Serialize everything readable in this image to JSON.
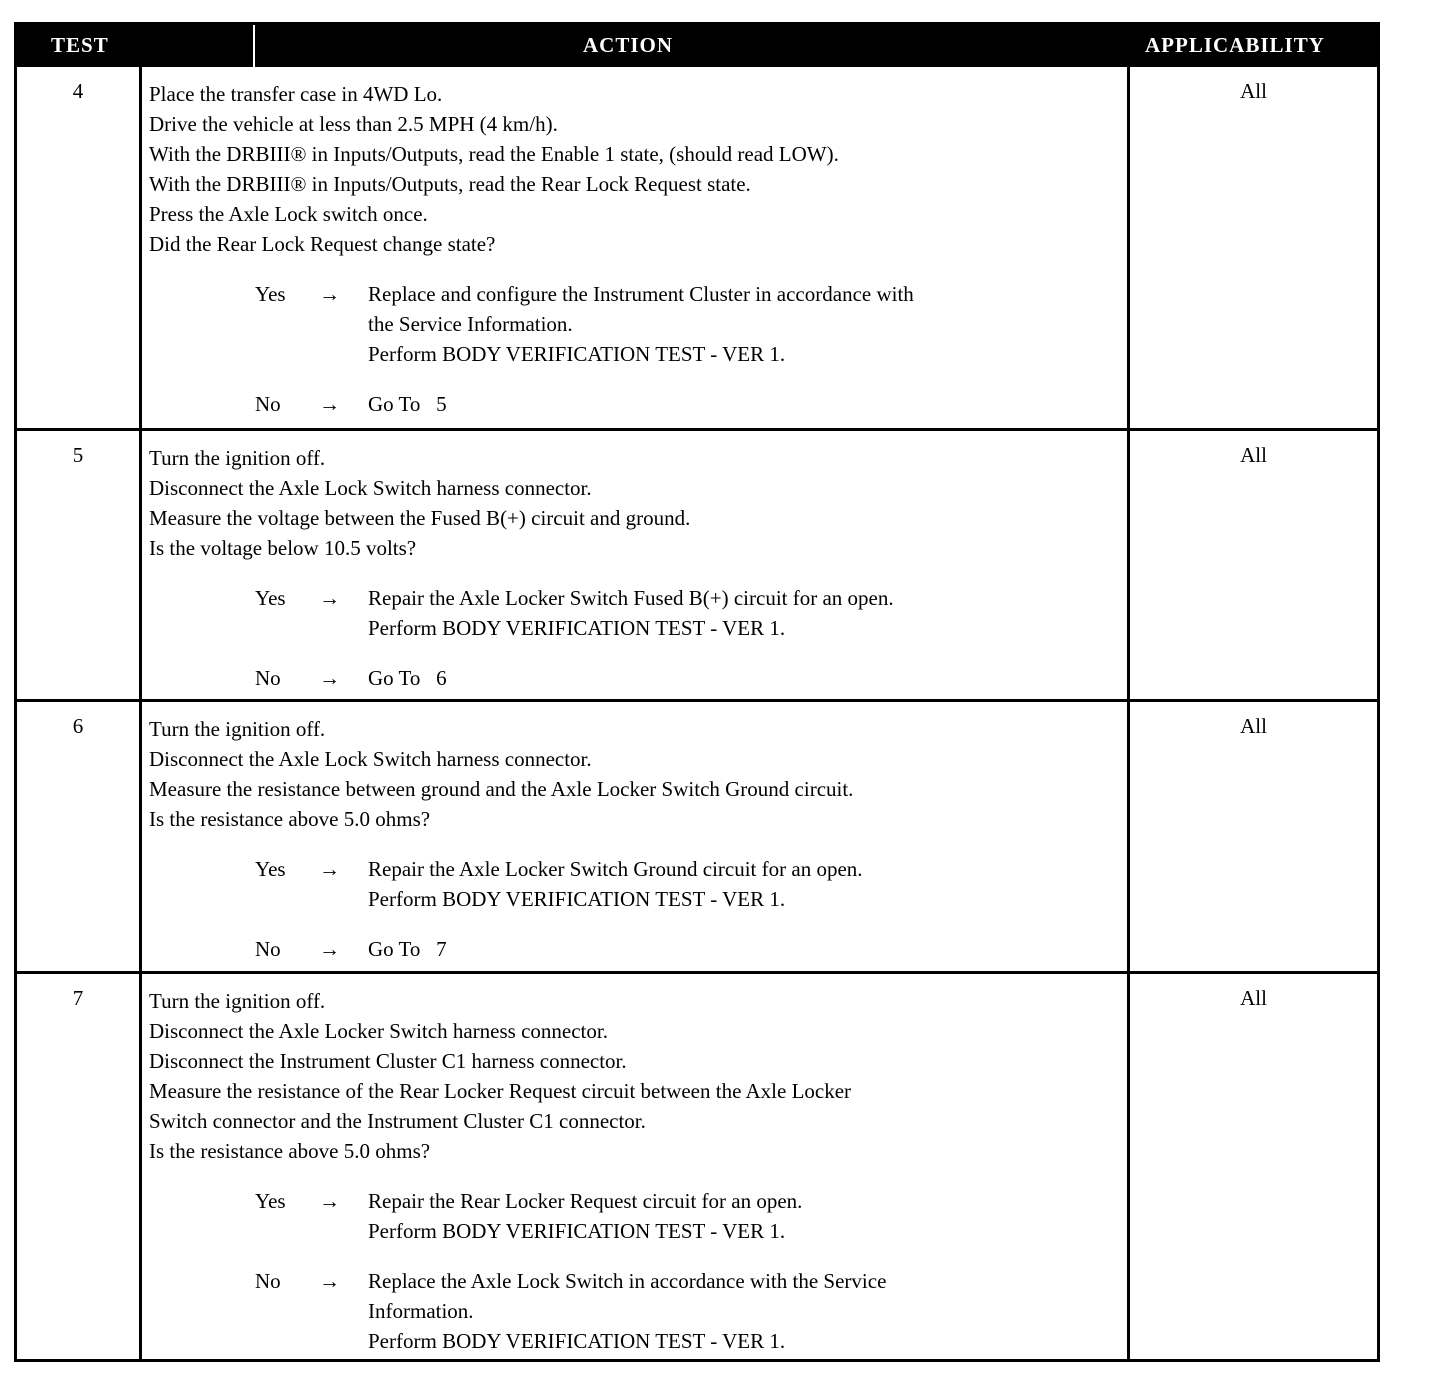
{
  "headers": {
    "test": "TEST",
    "action": "ACTION",
    "applicability": "APPLICABILITY"
  },
  "arrow": "→",
  "tests": [
    {
      "number": "4",
      "applicability": "All",
      "lines": [
        "Place the transfer case in 4WD Lo.",
        "Drive the vehicle at less than 2.5 MPH (4 km/h).",
        "With the DRBIII® in Inputs/Outputs, read the Enable 1 state, (should read LOW).",
        "With the DRBIII® in Inputs/Outputs, read the Rear Lock Request state.",
        "Press the Axle Lock switch once.",
        "Did the Rear Lock Request change state?"
      ],
      "outcomes": [
        {
          "label": "Yes",
          "lines": [
            "Replace and configure the Instrument Cluster in accordance with",
            "the Service Information.",
            "Perform BODY VERIFICATION TEST - VER 1."
          ]
        },
        {
          "label": "No",
          "lines": [
            "Go To   5"
          ]
        }
      ]
    },
    {
      "number": "5",
      "applicability": "All",
      "lines": [
        "Turn the ignition off.",
        "Disconnect the Axle Lock Switch harness connector.",
        "Measure the voltage between the Fused B(+) circuit and ground.",
        "Is the voltage below 10.5 volts?"
      ],
      "outcomes": [
        {
          "label": "Yes",
          "lines": [
            "Repair the Axle Locker Switch Fused B(+) circuit for an open.",
            "Perform BODY VERIFICATION TEST - VER 1."
          ]
        },
        {
          "label": "No",
          "lines": [
            "Go To   6"
          ]
        }
      ]
    },
    {
      "number": "6",
      "applicability": "All",
      "lines": [
        "Turn the ignition off.",
        "Disconnect the Axle Lock Switch harness connector.",
        "Measure the resistance between ground and the Axle Locker Switch Ground circuit.",
        "Is the resistance above 5.0 ohms?"
      ],
      "outcomes": [
        {
          "label": "Yes",
          "lines": [
            "Repair the Axle Locker Switch Ground circuit for an open.",
            "Perform BODY VERIFICATION TEST - VER 1."
          ]
        },
        {
          "label": "No",
          "lines": [
            "Go To   7"
          ]
        }
      ]
    },
    {
      "number": "7",
      "applicability": "All",
      "lines": [
        "Turn the ignition off.",
        "Disconnect the Axle Locker Switch harness connector.",
        "Disconnect the Instrument Cluster C1 harness connector.",
        "Measure the resistance of the Rear Locker Request circuit between the Axle Locker",
        "Switch connector and the Instrument Cluster C1 connector.",
        "Is the resistance above 5.0 ohms?"
      ],
      "outcomes": [
        {
          "label": "Yes",
          "lines": [
            "Repair the Rear Locker Request circuit for an open.",
            "Perform BODY VERIFICATION TEST - VER 1."
          ]
        },
        {
          "label": "No",
          "lines": [
            "Replace the Axle Lock Switch in accordance with the Service",
            "Information.",
            "Perform BODY VERIFICATION TEST - VER 1."
          ]
        }
      ]
    }
  ]
}
